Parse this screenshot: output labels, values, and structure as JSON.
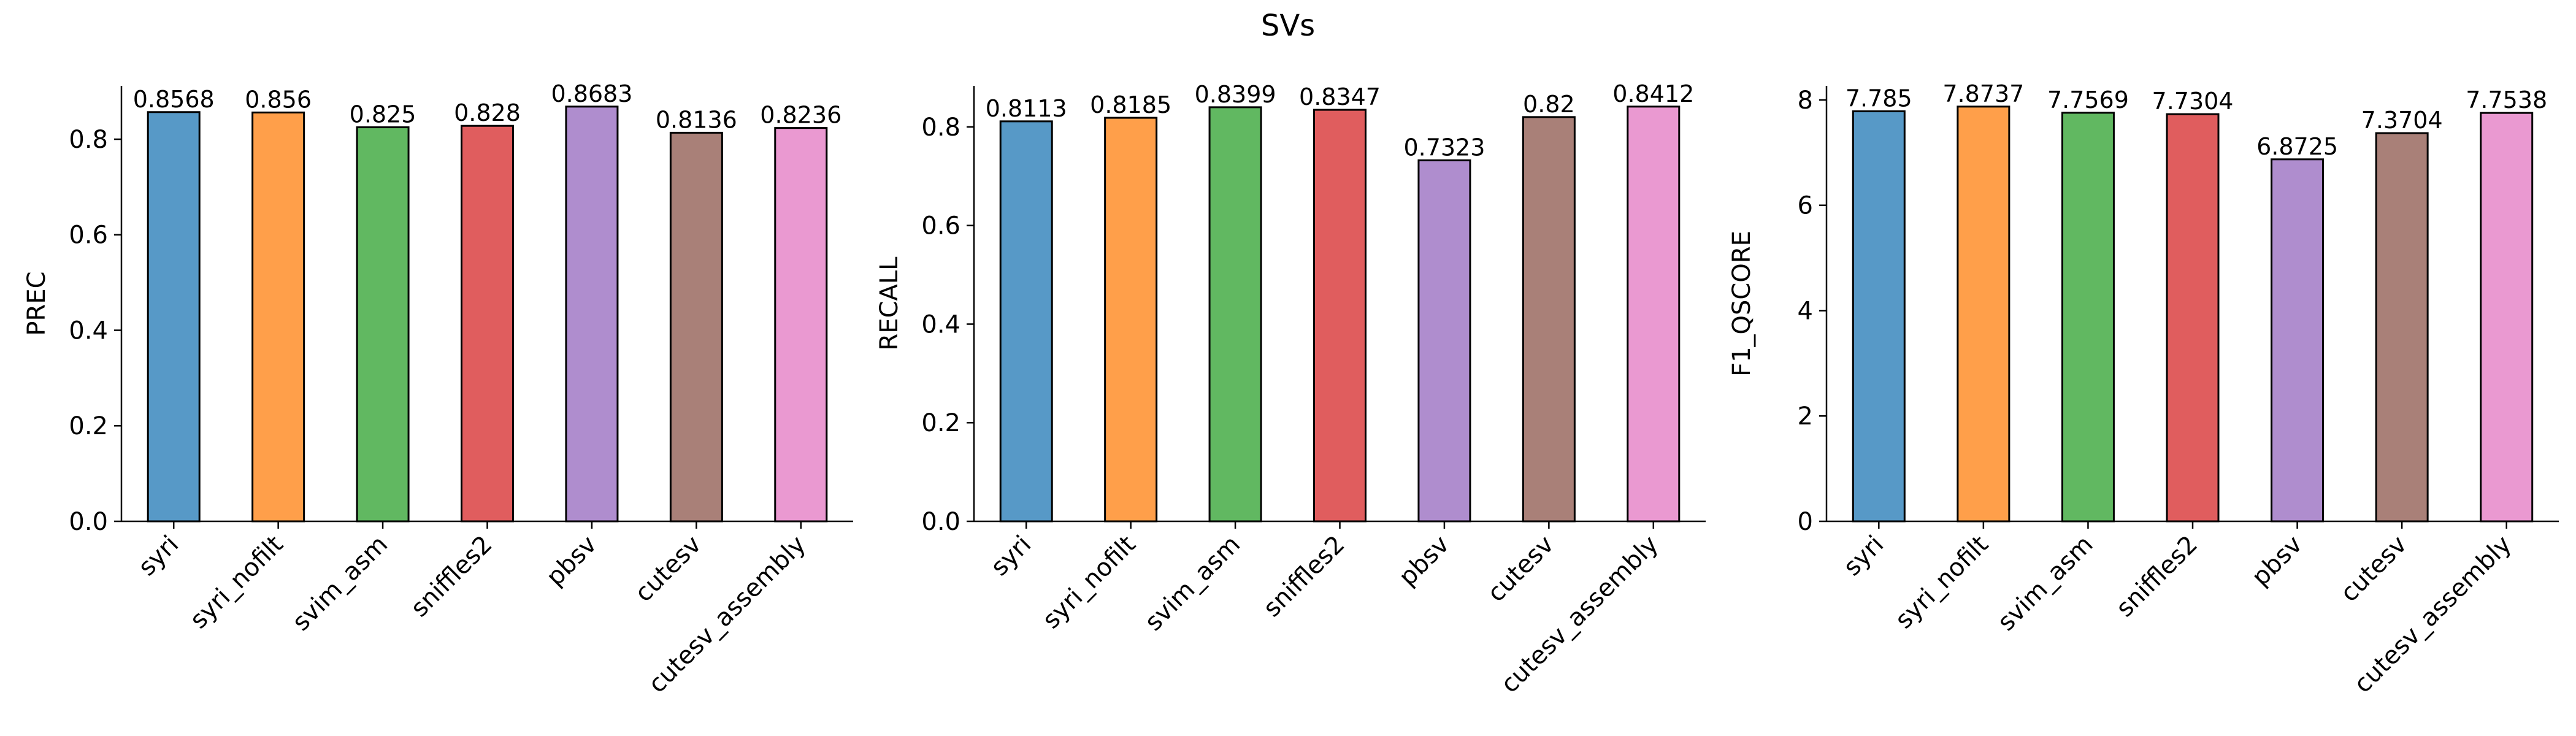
{
  "figure": {
    "title": "SVs"
  },
  "colors": [
    "#1f77b4",
    "#ff7f0e",
    "#2ca02c",
    "#d62728",
    "#9467bd",
    "#8c564b",
    "#e377c2"
  ],
  "bar_opacity": 0.75,
  "chart_data": [
    {
      "type": "bar",
      "title": "",
      "xlabel": "",
      "ylabel": "PREC",
      "categories": [
        "syri",
        "syri_nofilt",
        "svim_asm",
        "sniffles2",
        "pbsv",
        "cutesv",
        "cutesv_assembly"
      ],
      "values": [
        0.8568,
        0.856,
        0.825,
        0.828,
        0.8683,
        0.8136,
        0.8236
      ],
      "value_labels": [
        "0.8568",
        "0.856",
        "0.825",
        "0.828",
        "0.8683",
        "0.8136",
        "0.8236"
      ],
      "ylim": [
        0,
        0.911715
      ],
      "yticks": [
        0.0,
        0.2,
        0.4,
        0.6,
        0.8
      ],
      "ytick_labels": [
        "0.0",
        "0.2",
        "0.4",
        "0.6",
        "0.8"
      ],
      "grid": false,
      "legend": "none"
    },
    {
      "type": "bar",
      "title": "",
      "xlabel": "",
      "ylabel": "RECALL",
      "categories": [
        "syri",
        "syri_nofilt",
        "svim_asm",
        "sniffles2",
        "pbsv",
        "cutesv",
        "cutesv_assembly"
      ],
      "values": [
        0.8113,
        0.8185,
        0.8399,
        0.8347,
        0.7323,
        0.82,
        0.8412
      ],
      "value_labels": [
        "0.8113",
        "0.8185",
        "0.8399",
        "0.8347",
        "0.7323",
        "0.82",
        "0.8412"
      ],
      "ylim": [
        0,
        0.88326
      ],
      "yticks": [
        0.0,
        0.2,
        0.4,
        0.6,
        0.8
      ],
      "ytick_labels": [
        "0.0",
        "0.2",
        "0.4",
        "0.6",
        "0.8"
      ],
      "grid": false,
      "legend": "none"
    },
    {
      "type": "bar",
      "title": "",
      "xlabel": "",
      "ylabel": "F1_QSCORE",
      "categories": [
        "syri",
        "syri_nofilt",
        "svim_asm",
        "sniffles2",
        "pbsv",
        "cutesv",
        "cutesv_assembly"
      ],
      "values": [
        7.785,
        7.8737,
        7.7569,
        7.7304,
        6.8725,
        7.3704,
        7.7538
      ],
      "value_labels": [
        "7.785",
        "7.8737",
        "7.7569",
        "7.7304",
        "6.8725",
        "7.3704",
        "7.7538"
      ],
      "ylim": [
        0,
        8.267385
      ],
      "yticks": [
        0,
        2,
        4,
        6,
        8
      ],
      "ytick_labels": [
        "0",
        "2",
        "4",
        "6",
        "8"
      ],
      "grid": false,
      "legend": "none"
    }
  ]
}
